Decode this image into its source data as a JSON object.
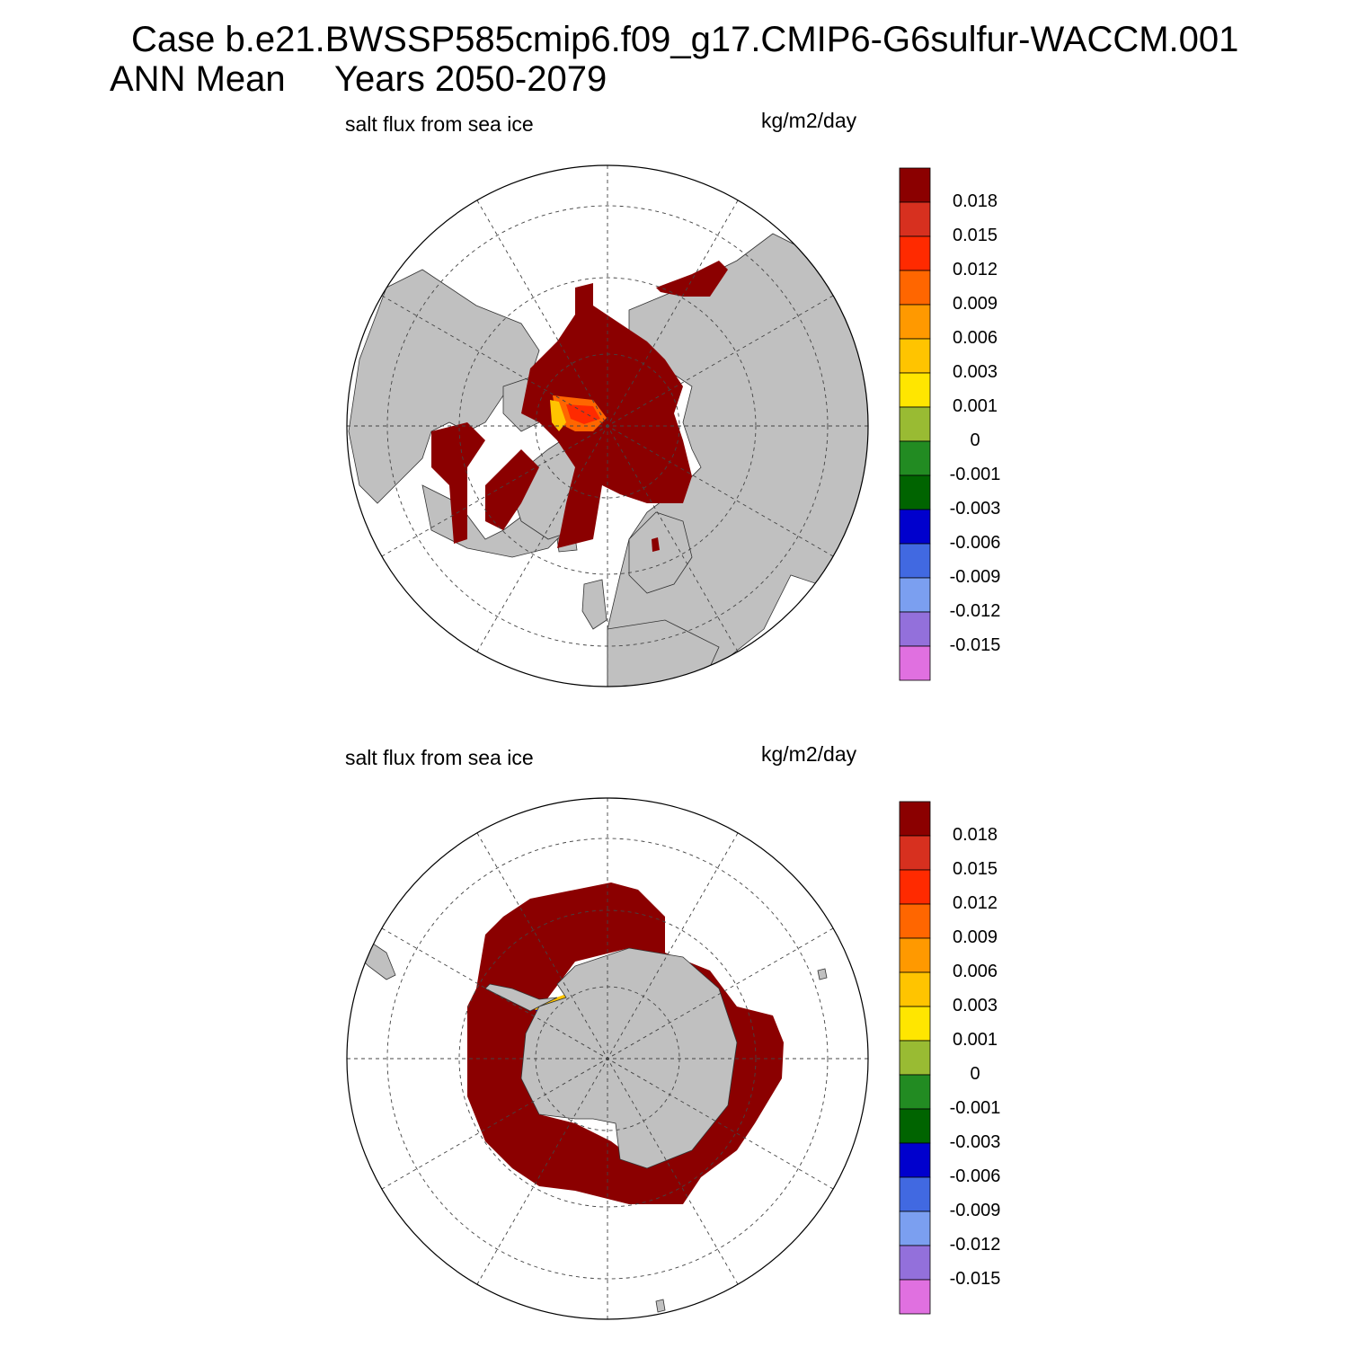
{
  "title": {
    "line1": "Case b.e21.BWSSP585cmip6.f09_g17.CMIP6-G6sulfur-WACCM.001",
    "line2_a": "ANN Mean",
    "line2_b": "Years 2050-2079"
  },
  "panels": [
    {
      "id": "north",
      "variable": "salt flux from sea ice",
      "units": "kg/m2/day",
      "projection": "north polar stereographic",
      "dominant_value": "> 0.018",
      "land_color": "#c0c0c0",
      "ocean_color": "#ffffff"
    },
    {
      "id": "south",
      "variable": "salt flux from sea ice",
      "units": "kg/m2/day",
      "projection": "south polar stereographic",
      "dominant_value": "> 0.018",
      "land_color": "#c0c0c0",
      "ocean_color": "#ffffff"
    }
  ],
  "colorbar": {
    "labels": [
      "0.018",
      "0.015",
      "0.012",
      "0.009",
      "0.006",
      "0.003",
      "0.001",
      "0",
      "-0.001",
      "-0.003",
      "-0.006",
      "-0.009",
      "-0.012",
      "-0.015"
    ],
    "colors": [
      "#8b0000",
      "#d7301f",
      "#ff2a00",
      "#ff6600",
      "#ff9900",
      "#ffc400",
      "#ffe600",
      "#99bb33",
      "#228b22",
      "#006400",
      "#0000cd",
      "#4169e1",
      "#7b9ff0",
      "#9370db",
      "#e070e0"
    ]
  }
}
